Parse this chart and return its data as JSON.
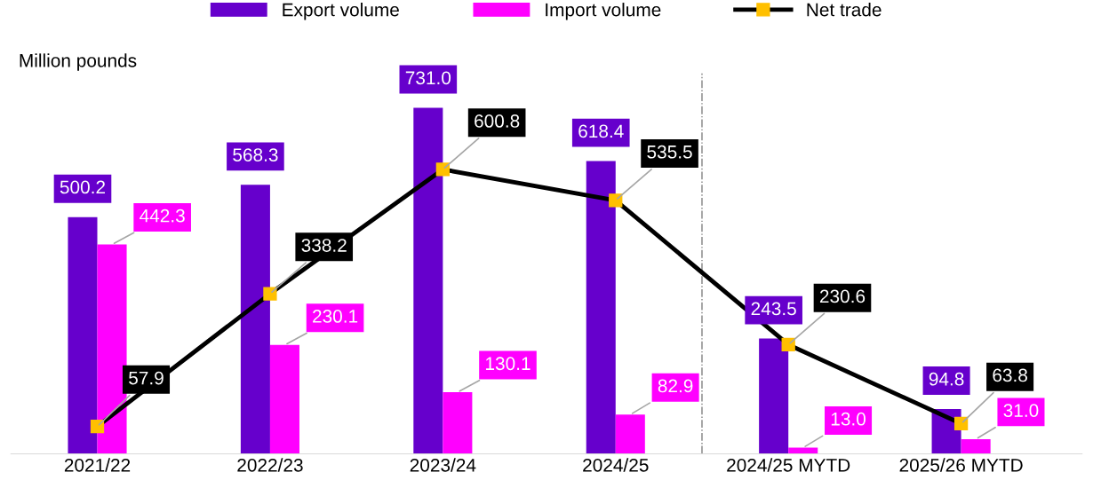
{
  "chart_data": {
    "type": "bar",
    "ylabel": "Million pounds",
    "categories": [
      "2021/22",
      "2022/23",
      "2023/24",
      "2024/25",
      "2024/25 MYTD",
      "2025/26 MYTD"
    ],
    "series": [
      {
        "name": "Export volume",
        "color": "#6600cc",
        "values": [
          500.2,
          568.3,
          731.0,
          618.4,
          243.5,
          94.8
        ],
        "value_labels": [
          "500.2",
          "568.3",
          "731.0",
          "618.4",
          "243.5",
          "94.8"
        ]
      },
      {
        "name": "Import volume",
        "color": "#ff00ff",
        "values": [
          442.3,
          230.1,
          130.1,
          82.9,
          13.0,
          31.0
        ],
        "value_labels": [
          "442.3",
          "230.1",
          "130.1",
          "82.9",
          "13.0",
          "31.0"
        ]
      },
      {
        "name": "Net trade",
        "type": "line",
        "color": "#000000",
        "values": [
          57.9,
          338.2,
          600.8,
          535.5,
          230.6,
          63.8
        ],
        "value_labels": [
          "57.9",
          "338.2",
          "600.8",
          "535.5",
          "230.6",
          "63.8"
        ]
      }
    ],
    "marker": "square",
    "line_style": "solid",
    "grid": false,
    "legend": "top"
  }
}
